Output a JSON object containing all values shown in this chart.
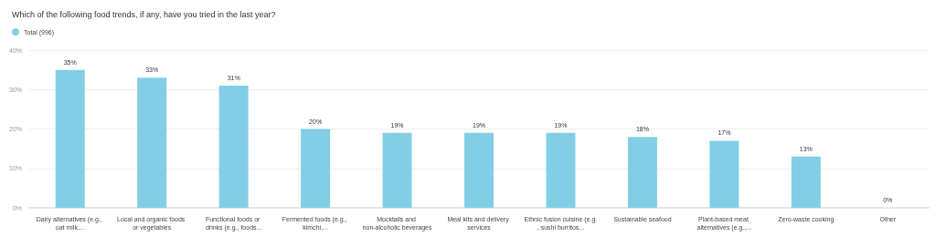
{
  "chart_data": {
    "type": "bar",
    "title": "Which of the following food trends, if any, have you tried in the last year?",
    "categories": [
      "Dairy alternatives (e.g., oat milk,...",
      "Local and organic foods or vegetables",
      "Functional foods or drinks (e.g., foods...",
      "Fermented foods (e.g., kimchi,...",
      "Mocktails and non-alcoholic beverages",
      "Meal kits and delivery services",
      "Ethnic fusion cuisine (e.g., sushi burritos...",
      "Sustainable seafood",
      "Plant-based meat alternatives (e.g.,...",
      "Zero-waste cooking",
      "Other"
    ],
    "series": [
      {
        "name": "Total (996)",
        "color": "#82cfe5",
        "values": [
          35,
          33,
          31,
          20,
          19,
          19,
          19,
          18,
          17,
          13,
          0
        ]
      }
    ],
    "value_labels": [
      "35%",
      "33%",
      "31%",
      "20%",
      "19%",
      "19%",
      "19%",
      "18%",
      "17%",
      "13%",
      "0%"
    ],
    "ylim": [
      0,
      40
    ],
    "yticks": [
      {
        "value": 0,
        "label": "0%"
      },
      {
        "value": 10,
        "label": "10%"
      },
      {
        "value": 20,
        "label": "20%"
      },
      {
        "value": 30,
        "label": "30%"
      },
      {
        "value": 40,
        "label": "40%"
      }
    ],
    "grid": "y",
    "legend": "top left"
  }
}
